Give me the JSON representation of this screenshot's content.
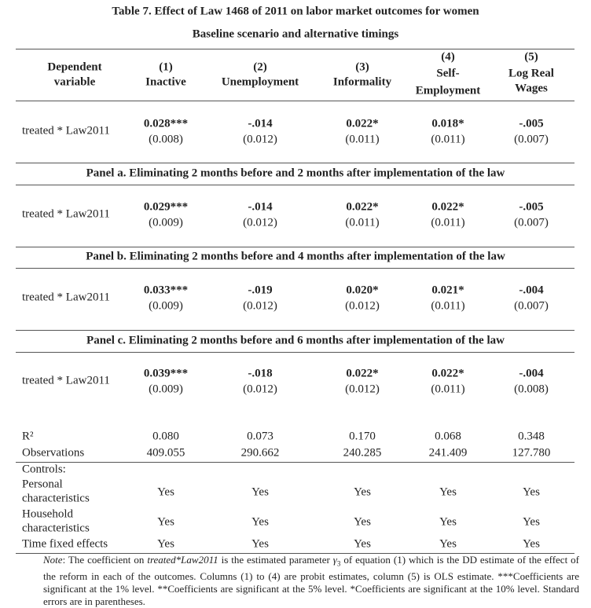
{
  "title": "Table 7. Effect of Law 1468 of 2011 on labor market outcomes for women",
  "subtitle": "Baseline scenario and alternative timings",
  "header": {
    "dependent": [
      "Dependent",
      "variable"
    ],
    "columns": [
      {
        "number": "(1)",
        "label": [
          "Inactive"
        ]
      },
      {
        "number": "(2)",
        "label": [
          "Unemployment"
        ]
      },
      {
        "number": "(3)",
        "label": [
          "Informality"
        ]
      },
      {
        "number": "(4)",
        "label": [
          "Self-",
          "Employment"
        ]
      },
      {
        "number": "(5)",
        "label": [
          "Log Real",
          "Wages"
        ]
      }
    ]
  },
  "baseline": {
    "label": "treated * Law2011",
    "coefficients": [
      "0.028***",
      "-.014",
      "0.022*",
      "0.018*",
      "-.005"
    ],
    "std_errors": [
      "(0.008)",
      "(0.012)",
      "(0.011)",
      "(0.011)",
      "(0.007)"
    ]
  },
  "panels": [
    {
      "title": "Panel a. Eliminating 2 months before and 2 months after implementation of the law",
      "label": "treated * Law2011",
      "coefficients": [
        "0.029***",
        "-.014",
        "0.022*",
        "0.022*",
        "-.005"
      ],
      "std_errors": [
        "(0.009)",
        "(0.012)",
        "(0.011)",
        "(0.011)",
        "(0.007)"
      ]
    },
    {
      "title": "Panel b. Eliminating 2 months before and 4 months after implementation of the law",
      "label": "treated * Law2011",
      "coefficients": [
        "0.033***",
        "-.019",
        "0.020*",
        "0.021*",
        "-.004"
      ],
      "std_errors": [
        "(0.009)",
        "(0.012)",
        "(0.012)",
        "(0.011)",
        "(0.007)"
      ]
    },
    {
      "title": "Panel c. Eliminating 2 months before and 6 months after implementation of the law",
      "label": "treated * Law2011",
      "coefficients": [
        "0.039***",
        "-.018",
        "0.022*",
        "0.022*",
        "-.004"
      ],
      "std_errors": [
        "(0.009)",
        "(0.012)",
        "(0.012)",
        "(0.011)",
        "(0.008)"
      ]
    }
  ],
  "stats": [
    {
      "label": "R²",
      "values": [
        "0.080",
        "0.073",
        "0.170",
        "0.068",
        "0.348"
      ]
    },
    {
      "label": "Observations",
      "values": [
        "409.055",
        "290.662",
        "240.285",
        "241.409",
        "127.780"
      ]
    }
  ],
  "controls": {
    "title": "Controls:",
    "rows": [
      {
        "label": [
          "Personal",
          "characteristics"
        ],
        "values": [
          "Yes",
          "Yes",
          "Yes",
          "Yes",
          "Yes"
        ]
      },
      {
        "label": [
          "Household",
          "characteristics"
        ],
        "values": [
          "Yes",
          "Yes",
          "Yes",
          "Yes",
          "Yes"
        ]
      },
      {
        "label": [
          "Time fixed effects"
        ],
        "values": [
          "Yes",
          "Yes",
          "Yes",
          "Yes",
          "Yes"
        ]
      }
    ]
  },
  "note": [
    {
      "text": "Note",
      "italic": true
    },
    {
      "text": ": The coefficient on "
    },
    {
      "text": "treated*Law2011",
      "italic": true
    },
    {
      "text": " is the estimated parameter "
    },
    {
      "text": "γ",
      "italic": true
    },
    {
      "text": "3",
      "subscript": true
    },
    {
      "text": " of equation (1) which is the DD estimate of the effect of the reform in each of the outcomes. Columns (1) to (4) are probit estimates, column (5) is OLS estimate. ***Coefficients are significant at the 1% level. **Coefficients are significant at the 5% level. *Coefficients are significant at the 10% level. Standard errors are in parentheses."
    }
  ]
}
